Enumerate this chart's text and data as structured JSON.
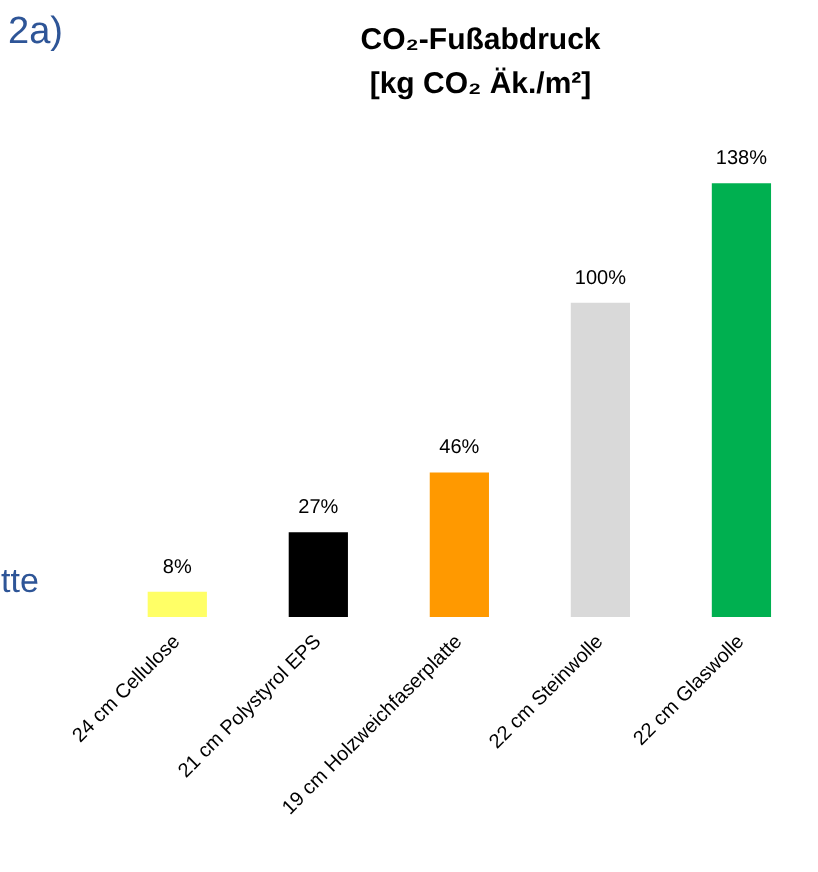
{
  "chart_data": {
    "type": "bar",
    "title": "CO₂-Fußabdruck\n[kg CO₂ Äk./m²]",
    "categories": [
      "24 cm Cellulose",
      "21 cm Polystyrol EPS",
      "19 cm Holzweichfaserplatte",
      "22 cm Steinwolle",
      "22 cm Glaswolle"
    ],
    "values": [
      8,
      27,
      46,
      100,
      138
    ],
    "colors": [
      "#ffff66",
      "#000000",
      "#ff9900",
      "#d9d9d9",
      "#00b050"
    ],
    "value_labels": [
      "8%",
      "27%",
      "46%",
      "100%",
      "138%"
    ],
    "annotations": [
      "2a)",
      "tte"
    ],
    "grid": false
  }
}
